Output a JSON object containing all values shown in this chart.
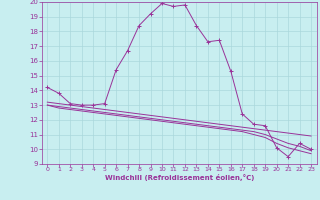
{
  "xlabel": "Windchill (Refroidissement éolien,°C)",
  "xlim": [
    -0.5,
    23.5
  ],
  "ylim": [
    9,
    20
  ],
  "yticks": [
    9,
    10,
    11,
    12,
    13,
    14,
    15,
    16,
    17,
    18,
    19,
    20
  ],
  "xticks": [
    0,
    1,
    2,
    3,
    4,
    5,
    6,
    7,
    8,
    9,
    10,
    11,
    12,
    13,
    14,
    15,
    16,
    17,
    18,
    19,
    20,
    21,
    22,
    23
  ],
  "background_color": "#c8eef0",
  "line_color": "#993399",
  "grid_color": "#aad8dc",
  "series": {
    "main": {
      "x": [
        0,
        1,
        2,
        3,
        4,
        5,
        6,
        7,
        8,
        9,
        10,
        11,
        12,
        13,
        14,
        15,
        16,
        17,
        18,
        19,
        20,
        21,
        22,
        23
      ],
      "y": [
        14.2,
        13.8,
        13.1,
        13.0,
        13.0,
        13.1,
        15.4,
        16.7,
        18.4,
        19.2,
        19.9,
        19.7,
        19.8,
        18.4,
        17.3,
        17.4,
        15.3,
        12.4,
        11.7,
        11.6,
        10.1,
        9.5,
        10.4,
        10.0
      ]
    },
    "flat1": {
      "x": [
        0,
        1,
        2,
        3,
        4,
        5,
        6,
        7,
        8,
        9,
        10,
        11,
        12,
        13,
        14,
        15,
        16,
        17,
        18,
        19,
        20,
        21,
        22,
        23
      ],
      "y": [
        13.2,
        13.1,
        13.0,
        12.9,
        12.8,
        12.7,
        12.6,
        12.5,
        12.4,
        12.3,
        12.2,
        12.1,
        12.0,
        11.9,
        11.8,
        11.7,
        11.6,
        11.5,
        11.4,
        11.3,
        11.2,
        11.1,
        11.0,
        10.9
      ]
    },
    "flat2": {
      "x": [
        0,
        1,
        2,
        3,
        4,
        5,
        6,
        7,
        8,
        9,
        10,
        11,
        12,
        13,
        14,
        15,
        16,
        17,
        18,
        19,
        20,
        21,
        22,
        23
      ],
      "y": [
        13.0,
        12.9,
        12.8,
        12.7,
        12.6,
        12.5,
        12.4,
        12.3,
        12.2,
        12.1,
        12.0,
        11.9,
        11.8,
        11.7,
        11.6,
        11.5,
        11.4,
        11.3,
        11.2,
        11.0,
        10.7,
        10.4,
        10.2,
        9.9
      ]
    },
    "flat3": {
      "x": [
        0,
        1,
        2,
        3,
        4,
        5,
        6,
        7,
        8,
        9,
        10,
        11,
        12,
        13,
        14,
        15,
        16,
        17,
        18,
        19,
        20,
        21,
        22,
        23
      ],
      "y": [
        13.0,
        12.8,
        12.7,
        12.6,
        12.5,
        12.4,
        12.3,
        12.2,
        12.1,
        12.0,
        11.9,
        11.8,
        11.7,
        11.6,
        11.5,
        11.4,
        11.3,
        11.2,
        11.0,
        10.8,
        10.4,
        10.1,
        9.9,
        9.7
      ]
    }
  }
}
